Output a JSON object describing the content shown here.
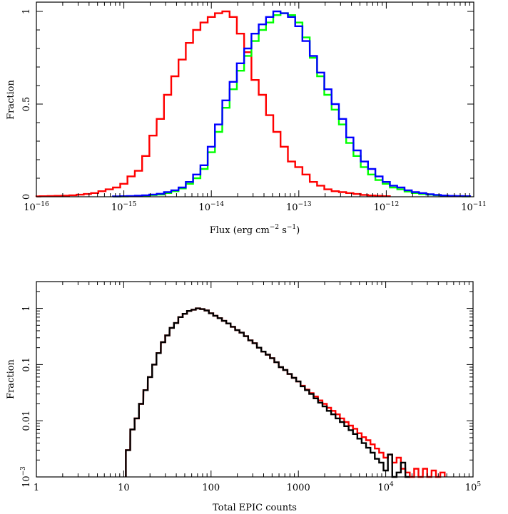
{
  "chart_data": [
    {
      "type": "line",
      "step": true,
      "xscale": "log",
      "xlim": [
        1e-16,
        1e-11
      ],
      "ylim": [
        0,
        1.05
      ],
      "xlabel": "Flux (erg cm",
      "xlabel_cm_exp": "−2",
      "xlabel_mid": " s",
      "xlabel_s_exp": "−1",
      "xlabel_end": ")",
      "ylabel": "Fraction",
      "x_tick_labels": [
        {
          "value": 1e-16,
          "base": "10",
          "exp": "−16"
        },
        {
          "value": 1e-15,
          "base": "10",
          "exp": "−15"
        },
        {
          "value": 1e-14,
          "base": "10",
          "exp": "−14"
        },
        {
          "value": 1e-13,
          "base": "10",
          "exp": "−13"
        },
        {
          "value": 1e-12,
          "base": "10",
          "exp": "−12"
        },
        {
          "value": 1e-11,
          "base": "10",
          "exp": "−11"
        }
      ],
      "y_tick_labels": [
        {
          "value": 0,
          "label": "0"
        },
        {
          "value": 0.5,
          "label": "0.5"
        },
        {
          "value": 1,
          "label": "1"
        }
      ],
      "bin_width_dex": 0.0833,
      "series": [
        {
          "color": "#ff0000",
          "x": [
            "1e-16",
            "1.21e-16",
            "1.47e-16",
            "1.78e-16",
            "2.15e-16",
            "2.61e-16",
            "3.16e-16",
            "3.83e-16",
            "4.64e-16",
            "5.62e-16",
            "6.81e-16",
            "8.25e-16",
            "1e-15",
            "1.21e-15",
            "1.47e-15",
            "1.78e-15",
            "2.15e-15",
            "2.61e-15",
            "3.16e-15",
            "3.83e-15",
            "4.64e-15",
            "5.62e-15",
            "6.81e-15",
            "8.25e-15",
            "1e-14",
            "1.21e-14",
            "1.47e-14",
            "1.78e-14",
            "2.15e-14",
            "2.61e-14",
            "3.16e-14",
            "3.83e-14",
            "4.64e-14",
            "5.62e-14",
            "6.81e-14",
            "8.25e-14",
            "1e-13",
            "1.21e-13",
            "1.47e-13",
            "1.78e-13",
            "2.15e-13",
            "2.61e-13",
            "3.16e-13",
            "3.83e-13",
            "4.64e-13",
            "5.62e-13",
            "6.81e-13",
            "8.25e-13",
            "1e-12"
          ],
          "values": [
            0.002,
            0.003,
            0.004,
            0.005,
            0.006,
            0.008,
            0.011,
            0.015,
            0.02,
            0.03,
            0.04,
            0.05,
            0.07,
            0.11,
            0.14,
            0.22,
            0.33,
            0.42,
            0.55,
            0.65,
            0.74,
            0.83,
            0.9,
            0.94,
            0.97,
            0.99,
            1.0,
            0.97,
            0.88,
            0.78,
            0.63,
            0.55,
            0.44,
            0.35,
            0.27,
            0.19,
            0.16,
            0.12,
            0.08,
            0.06,
            0.04,
            0.03,
            0.025,
            0.02,
            0.015,
            0.01,
            0.007,
            0.005,
            0.003
          ]
        },
        {
          "color": "#00ff00",
          "x": [
            "8.25e-16",
            "1e-15",
            "1.21e-15",
            "1.47e-15",
            "1.78e-15",
            "2.15e-15",
            "2.61e-15",
            "3.16e-15",
            "3.83e-15",
            "4.64e-15",
            "5.62e-15",
            "6.81e-15",
            "8.25e-15",
            "1e-14",
            "1.21e-14",
            "1.47e-14",
            "1.78e-14",
            "2.15e-14",
            "2.61e-14",
            "3.16e-14",
            "3.83e-14",
            "4.64e-14",
            "5.62e-14",
            "6.81e-14",
            "8.25e-14",
            "1e-13",
            "1.21e-13",
            "1.47e-13",
            "1.78e-13",
            "2.15e-13",
            "2.61e-13",
            "3.16e-13",
            "3.83e-13",
            "4.64e-13",
            "5.62e-13",
            "6.81e-13",
            "8.25e-13",
            "1e-12",
            "1.21e-12",
            "1.47e-12",
            "1.78e-12",
            "2.15e-12",
            "2.61e-12",
            "3.16e-12",
            "3.83e-12",
            "4.64e-12",
            "5.62e-12",
            "6.81e-12",
            "8.25e-12"
          ],
          "values": [
            0.001,
            0.002,
            0.003,
            0.004,
            0.006,
            0.009,
            0.012,
            0.02,
            0.03,
            0.045,
            0.07,
            0.1,
            0.15,
            0.24,
            0.35,
            0.48,
            0.58,
            0.68,
            0.76,
            0.84,
            0.9,
            0.94,
            0.98,
            0.99,
            0.98,
            0.94,
            0.86,
            0.75,
            0.65,
            0.55,
            0.47,
            0.39,
            0.29,
            0.22,
            0.16,
            0.12,
            0.09,
            0.07,
            0.05,
            0.04,
            0.028,
            0.02,
            0.015,
            0.011,
            0.008,
            0.006,
            0.004,
            0.003,
            0.002
          ]
        },
        {
          "color": "#0000ff",
          "x": [
            "8.25e-16",
            "1e-15",
            "1.21e-15",
            "1.47e-15",
            "1.78e-15",
            "2.15e-15",
            "2.61e-15",
            "3.16e-15",
            "3.83e-15",
            "4.64e-15",
            "5.62e-15",
            "6.81e-15",
            "8.25e-15",
            "1e-14",
            "1.21e-14",
            "1.47e-14",
            "1.78e-14",
            "2.15e-14",
            "2.61e-14",
            "3.16e-14",
            "3.83e-14",
            "4.64e-14",
            "5.62e-14",
            "6.81e-14",
            "8.25e-14",
            "1e-13",
            "1.21e-13",
            "1.47e-13",
            "1.78e-13",
            "2.15e-13",
            "2.61e-13",
            "3.16e-13",
            "3.83e-13",
            "4.64e-13",
            "5.62e-13",
            "6.81e-13",
            "8.25e-13",
            "1e-12",
            "1.21e-12",
            "1.47e-12",
            "1.78e-12",
            "2.15e-12",
            "2.61e-12",
            "3.16e-12",
            "3.83e-12",
            "4.64e-12",
            "5.62e-12",
            "6.81e-12",
            "8.25e-12"
          ],
          "values": [
            0.002,
            0.003,
            0.004,
            0.006,
            0.008,
            0.012,
            0.016,
            0.025,
            0.035,
            0.05,
            0.08,
            0.12,
            0.17,
            0.27,
            0.39,
            0.52,
            0.62,
            0.72,
            0.8,
            0.88,
            0.93,
            0.97,
            1.0,
            0.99,
            0.97,
            0.92,
            0.84,
            0.76,
            0.67,
            0.58,
            0.5,
            0.42,
            0.32,
            0.25,
            0.19,
            0.15,
            0.11,
            0.08,
            0.06,
            0.05,
            0.035,
            0.025,
            0.02,
            0.014,
            0.01,
            0.007,
            0.005,
            0.004,
            0.003
          ]
        }
      ]
    },
    {
      "type": "line",
      "step": true,
      "xscale": "log",
      "yscale": "log",
      "xlim": [
        1,
        100000
      ],
      "ylim": [
        0.001,
        3
      ],
      "xlabel": "Total EPIC counts",
      "ylabel": "Fraction",
      "x_tick_labels": [
        {
          "value": 1,
          "base": "1",
          "exp": ""
        },
        {
          "value": 10,
          "base": "10",
          "exp": ""
        },
        {
          "value": 100,
          "base": "100",
          "exp": ""
        },
        {
          "value": 1000,
          "base": "1000",
          "exp": ""
        },
        {
          "value": 10000,
          "base": "10",
          "exp": "4"
        },
        {
          "value": 100000,
          "base": "10",
          "exp": "5"
        }
      ],
      "y_tick_labels": [
        {
          "value": 0.001,
          "base": "10",
          "exp": "−3"
        },
        {
          "value": 0.01,
          "base": "0.01",
          "exp": ""
        },
        {
          "value": 0.1,
          "base": "0.1",
          "exp": ""
        },
        {
          "value": 1,
          "base": "1",
          "exp": ""
        }
      ],
      "bin_width_dex": 0.05,
      "series": [
        {
          "color": "#ff0000",
          "x": [
            "11.2",
            "12.6",
            "14.1",
            "15.8",
            "17.8",
            "20",
            "22.4",
            "25.1",
            "28.2",
            "31.6",
            "35.5",
            "39.8",
            "44.7",
            "50.1",
            "56.2",
            "63.1",
            "70.8",
            "79.4",
            "89.1",
            "100",
            "112",
            "126",
            "141",
            "158",
            "178",
            "200",
            "224",
            "251",
            "282",
            "316",
            "355",
            "398",
            "447",
            "501",
            "562",
            "631",
            "708",
            "794",
            "891",
            "1000",
            "1120",
            "1260",
            "1410",
            "1580",
            "1780",
            "2000",
            "2240",
            "2510",
            "2820",
            "3160",
            "3550",
            "3980",
            "4470",
            "5010",
            "5620",
            "6310",
            "7080",
            "7940",
            "8910",
            "10000",
            "11200",
            "12600",
            "14100",
            "15800",
            "17800",
            "20000",
            "22400",
            "25100",
            "28200",
            "31600",
            "35500",
            "39800",
            "44700"
          ],
          "values": [
            0.003,
            0.007,
            0.011,
            0.02,
            0.035,
            0.06,
            0.1,
            0.16,
            0.25,
            0.33,
            0.45,
            0.55,
            0.7,
            0.8,
            0.9,
            0.95,
            1.0,
            0.97,
            0.92,
            0.82,
            0.74,
            0.67,
            0.6,
            0.54,
            0.47,
            0.41,
            0.37,
            0.32,
            0.27,
            0.24,
            0.2,
            0.17,
            0.15,
            0.13,
            0.11,
            0.09,
            0.08,
            0.068,
            0.058,
            0.05,
            0.042,
            0.036,
            0.031,
            0.027,
            0.023,
            0.02,
            0.017,
            0.015,
            0.013,
            0.011,
            0.0095,
            0.0082,
            0.0072,
            0.006,
            0.0051,
            0.0045,
            0.0038,
            0.0032,
            0.0027,
            0.0022,
            0.0025,
            0.0018,
            0.0022,
            0.0014,
            0.0012,
            0.001,
            0.0014,
            0.001,
            0.0014,
            0.001,
            0.0013,
            0.001,
            0.0012
          ]
        },
        {
          "color": "#000000",
          "x": [
            "11.2",
            "12.6",
            "14.1",
            "15.8",
            "17.8",
            "20",
            "22.4",
            "25.1",
            "28.2",
            "31.6",
            "35.5",
            "39.8",
            "44.7",
            "50.1",
            "56.2",
            "63.1",
            "70.8",
            "79.4",
            "89.1",
            "100",
            "112",
            "126",
            "141",
            "158",
            "178",
            "200",
            "224",
            "251",
            "282",
            "316",
            "355",
            "398",
            "447",
            "501",
            "562",
            "631",
            "708",
            "794",
            "891",
            "1000",
            "1120",
            "1260",
            "1410",
            "1580",
            "1780",
            "2000",
            "2240",
            "2510",
            "2820",
            "3160",
            "3550",
            "3980",
            "4470",
            "5010",
            "5620",
            "6310",
            "7080",
            "7940",
            "8910",
            "10000",
            "11200",
            "12600",
            "14100",
            "15800",
            "17800"
          ],
          "values": [
            0.003,
            0.007,
            0.011,
            0.02,
            0.035,
            0.06,
            0.1,
            0.16,
            0.25,
            0.33,
            0.45,
            0.55,
            0.7,
            0.8,
            0.9,
            0.95,
            1.0,
            0.97,
            0.92,
            0.82,
            0.74,
            0.67,
            0.6,
            0.54,
            0.47,
            0.41,
            0.37,
            0.32,
            0.27,
            0.24,
            0.2,
            0.17,
            0.15,
            0.13,
            0.11,
            0.09,
            0.08,
            0.068,
            0.058,
            0.05,
            0.041,
            0.035,
            0.03,
            0.025,
            0.021,
            0.018,
            0.015,
            0.013,
            0.011,
            0.0095,
            0.008,
            0.0068,
            0.0058,
            0.0048,
            0.004,
            0.0033,
            0.0027,
            0.0021,
            0.0018,
            0.0013,
            0.0025,
            0.001,
            0.0012,
            0.0018,
            0.001
          ]
        }
      ]
    }
  ]
}
